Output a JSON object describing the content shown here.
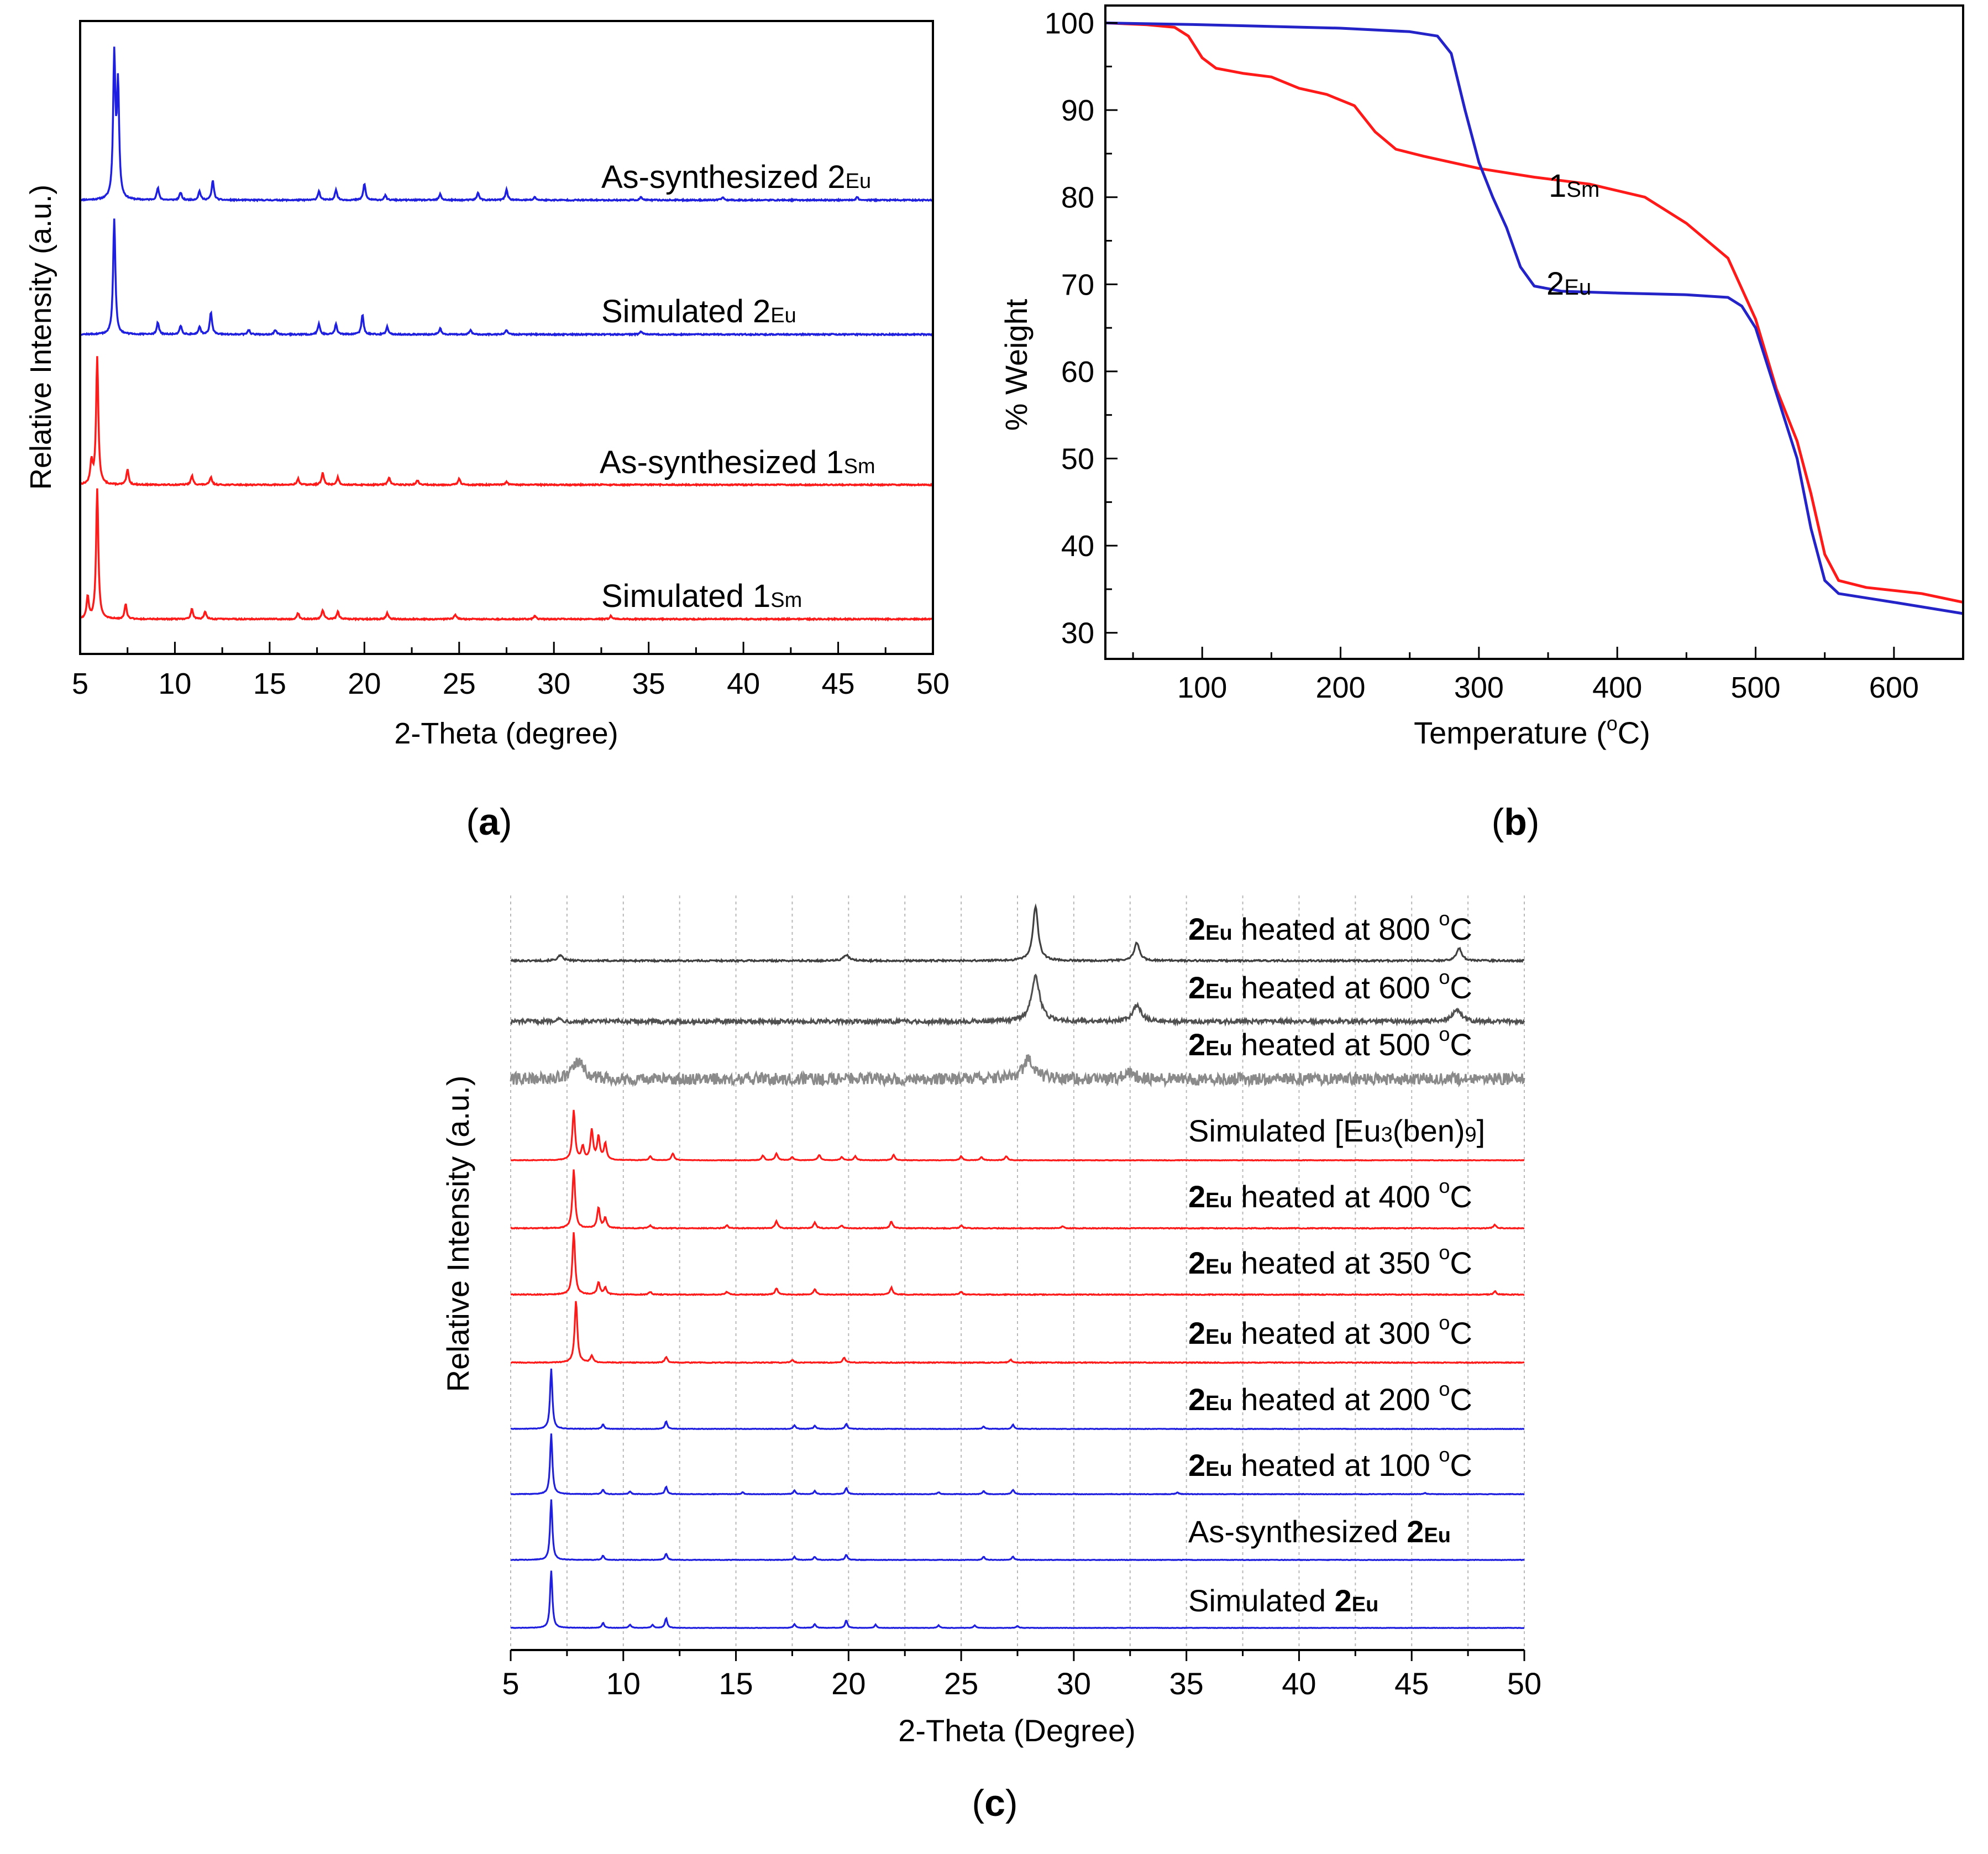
{
  "chart_data": [
    {
      "id": "a",
      "panel_label_parts": [
        "(",
        "a",
        ")"
      ],
      "type": "line",
      "xlabel": "2-Theta (degree)",
      "ylabel": "Relative Intensity (a.u.)",
      "xlim": [
        5,
        50
      ],
      "xticks": [
        5,
        10,
        15,
        20,
        25,
        30,
        35,
        40,
        45,
        50
      ],
      "series": [
        {
          "name": "As-synthesized 2Eu",
          "label_main": "As-synthesized 2",
          "label_sub": "Eu",
          "color": "#1f1fe0",
          "peaks": [
            [
              6.8,
              0.95
            ],
            [
              7.0,
              0.75
            ],
            [
              9.1,
              0.08
            ],
            [
              10.3,
              0.05
            ],
            [
              11.3,
              0.06
            ],
            [
              12.0,
              0.13
            ],
            [
              17.6,
              0.06
            ],
            [
              18.5,
              0.07
            ],
            [
              20.0,
              0.11
            ],
            [
              21.1,
              0.03
            ],
            [
              24.0,
              0.04
            ],
            [
              26.0,
              0.05
            ],
            [
              27.5,
              0.07
            ],
            [
              29.0,
              0.02
            ],
            [
              34.6,
              0.02
            ],
            [
              38.9,
              0.02
            ],
            [
              46.0,
              0.02
            ]
          ]
        },
        {
          "name": "Simulated 2Eu",
          "label_main": "Simulated 2",
          "label_sub": "Eu",
          "color": "#1f1fe0",
          "peaks": [
            [
              6.8,
              0.78
            ],
            [
              9.1,
              0.08
            ],
            [
              10.3,
              0.06
            ],
            [
              11.3,
              0.05
            ],
            [
              11.9,
              0.15
            ],
            [
              13.9,
              0.03
            ],
            [
              15.3,
              0.03
            ],
            [
              17.6,
              0.07
            ],
            [
              18.5,
              0.07
            ],
            [
              19.9,
              0.13
            ],
            [
              21.2,
              0.05
            ],
            [
              24.0,
              0.04
            ],
            [
              25.6,
              0.03
            ],
            [
              27.5,
              0.03
            ],
            [
              34.6,
              0.02
            ]
          ]
        },
        {
          "name": "As-synthesized 1Sm",
          "label_main": "As-synthesized 1",
          "label_sub": "Sm",
          "color": "#ff1a1a",
          "peaks": [
            [
              5.6,
              0.15
            ],
            [
              5.9,
              0.85
            ],
            [
              7.5,
              0.1
            ],
            [
              10.9,
              0.06
            ],
            [
              11.9,
              0.05
            ],
            [
              16.5,
              0.04
            ],
            [
              17.8,
              0.08
            ],
            [
              18.6,
              0.05
            ],
            [
              21.3,
              0.05
            ],
            [
              22.8,
              0.03
            ],
            [
              25.0,
              0.04
            ],
            [
              27.5,
              0.02
            ]
          ]
        },
        {
          "name": "Simulated 1Sm",
          "label_main": "Simulated 1",
          "label_sub": "Sm",
          "color": "#ff1a1a",
          "peaks": [
            [
              5.4,
              0.15
            ],
            [
              5.9,
              0.87
            ],
            [
              7.4,
              0.1
            ],
            [
              10.9,
              0.07
            ],
            [
              11.6,
              0.05
            ],
            [
              16.5,
              0.04
            ],
            [
              17.8,
              0.06
            ],
            [
              18.6,
              0.05
            ],
            [
              21.2,
              0.04
            ],
            [
              24.8,
              0.03
            ],
            [
              29.0,
              0.02
            ],
            [
              33.0,
              0.02
            ]
          ]
        }
      ]
    },
    {
      "id": "b",
      "panel_label_parts": [
        "(",
        "b",
        ")"
      ],
      "type": "line",
      "xlabel_main": "Temperature (",
      "xlabel_sup": "o",
      "xlabel_end": "C)",
      "ylabel": "% Weight",
      "xlim": [
        30,
        650
      ],
      "ylim": [
        27,
        102
      ],
      "xticks": [
        100,
        200,
        300,
        400,
        500,
        600
      ],
      "yticks": [
        30,
        40,
        50,
        60,
        70,
        80,
        90,
        100
      ],
      "series": [
        {
          "name": "1Sm",
          "label_main": "1",
          "label_sub": "Sm",
          "color": "#ff1a1a",
          "x": [
            30,
            60,
            80,
            90,
            100,
            110,
            130,
            150,
            170,
            190,
            210,
            225,
            240,
            260,
            300,
            340,
            380,
            420,
            450,
            480,
            500,
            515,
            530,
            540,
            550,
            560,
            580,
            620,
            650
          ],
          "y": [
            100,
            99.8,
            99.5,
            98.5,
            96,
            94.8,
            94.2,
            93.8,
            92.5,
            91.8,
            90.5,
            87.5,
            85.5,
            84.7,
            83.3,
            82.3,
            81.5,
            80,
            77,
            73,
            66,
            58,
            52,
            46,
            39,
            36,
            35.2,
            34.5,
            33.5
          ]
        },
        {
          "name": "2Eu",
          "label_main": "2",
          "label_sub": "Eu",
          "color": "#2323c8",
          "x": [
            30,
            100,
            200,
            250,
            270,
            280,
            290,
            300,
            310,
            320,
            330,
            340,
            360,
            400,
            450,
            480,
            490,
            500,
            510,
            520,
            530,
            540,
            550,
            560,
            600,
            650
          ],
          "y": [
            100,
            99.8,
            99.4,
            99.0,
            98.5,
            96.5,
            90,
            84,
            80,
            76.5,
            72,
            69.8,
            69.2,
            69.0,
            68.8,
            68.5,
            67.5,
            65,
            60,
            55,
            50,
            42,
            36,
            34.5,
            33.5,
            32.2
          ]
        }
      ]
    },
    {
      "id": "c",
      "panel_label_parts": [
        "(",
        "c",
        ")"
      ],
      "type": "line",
      "xlabel": "2-Theta (Degree)",
      "ylabel": "Relative Intensity (a.u.)",
      "xlim": [
        5,
        50
      ],
      "xticks": [
        5,
        10,
        15,
        20,
        25,
        30,
        35,
        40,
        45,
        50
      ],
      "grid": "vertical dotted",
      "series": [
        {
          "name": "2Eu heated at 800 °C",
          "bold": "2",
          "sub": "Eu",
          "text": " heated at 800 ",
          "sup": "o",
          "unit": "C",
          "color": "#404040",
          "noise": 0.012,
          "peaks": [
            [
              7.2,
              0.07
            ],
            [
              19.9,
              0.08
            ],
            [
              28.3,
              0.75
            ],
            [
              32.8,
              0.25
            ],
            [
              47.1,
              0.18
            ]
          ]
        },
        {
          "name": "2Eu heated at 600 °C",
          "bold": "2",
          "sub": "Eu",
          "text": " heated at 600 ",
          "sup": "o",
          "unit": "C",
          "color": "#505050",
          "noise": 0.025,
          "peaks": [
            [
              28.3,
              0.55
            ],
            [
              32.8,
              0.2
            ],
            [
              47.0,
              0.15
            ],
            [
              7.1,
              0.03
            ]
          ]
        },
        {
          "name": "2Eu heated at 500 °C",
          "bold": "2",
          "sub": "Eu",
          "text": " heated at 500 ",
          "sup": "o",
          "unit": "C",
          "color": "#8a8a8a",
          "noise": 0.09,
          "peaks": [
            [
              8.0,
              0.25
            ],
            [
              28.0,
              0.3
            ],
            [
              32.5,
              0.08
            ]
          ]
        },
        {
          "name": "Simulated [Eu3(ben)9]",
          "plain_text": "Simulated [Eu",
          "sub": "3",
          "plain_text2": "(ben)",
          "sub2": "9",
          "plain_end": "]",
          "color": "#ff1a1a",
          "noise": 0.004,
          "peaks": [
            [
              7.8,
              0.75
            ],
            [
              8.2,
              0.2
            ],
            [
              8.6,
              0.45
            ],
            [
              8.9,
              0.35
            ],
            [
              9.2,
              0.25
            ],
            [
              11.2,
              0.06
            ],
            [
              12.2,
              0.1
            ],
            [
              16.2,
              0.07
            ],
            [
              16.8,
              0.1
            ],
            [
              17.5,
              0.05
            ],
            [
              18.7,
              0.08
            ],
            [
              19.7,
              0.05
            ],
            [
              20.3,
              0.06
            ],
            [
              22.0,
              0.08
            ],
            [
              25.0,
              0.06
            ],
            [
              25.9,
              0.05
            ],
            [
              27.0,
              0.06
            ]
          ]
        },
        {
          "name": "2Eu heated at 400 °C",
          "bold": "2",
          "sub": "Eu",
          "text": " heated at 400 ",
          "sup": "o",
          "unit": "C",
          "color": "#ff1a1a",
          "noise": 0.006,
          "peaks": [
            [
              7.8,
              0.85
            ],
            [
              8.9,
              0.3
            ],
            [
              9.2,
              0.15
            ],
            [
              11.2,
              0.04
            ],
            [
              14.6,
              0.04
            ],
            [
              16.8,
              0.1
            ],
            [
              18.5,
              0.08
            ],
            [
              19.7,
              0.04
            ],
            [
              21.9,
              0.1
            ],
            [
              25.0,
              0.04
            ],
            [
              29.5,
              0.03
            ],
            [
              48.7,
              0.05
            ]
          ]
        },
        {
          "name": "2Eu heated at 350 °C",
          "bold": "2",
          "sub": "Eu",
          "text": " heated at 350 ",
          "sup": "o",
          "unit": "C",
          "color": "#ff1a1a",
          "noise": 0.006,
          "peaks": [
            [
              7.8,
              0.9
            ],
            [
              8.9,
              0.18
            ],
            [
              9.2,
              0.1
            ],
            [
              11.2,
              0.04
            ],
            [
              14.6,
              0.04
            ],
            [
              16.8,
              0.09
            ],
            [
              18.5,
              0.08
            ],
            [
              21.9,
              0.1
            ],
            [
              25.0,
              0.04
            ],
            [
              48.7,
              0.05
            ]
          ]
        },
        {
          "name": "2Eu heated at 300 °C",
          "bold": "2",
          "sub": "Eu",
          "text": " heated at 300 ",
          "sup": "o",
          "unit": "C",
          "color": "#ff1a1a",
          "noise": 0.006,
          "peaks": [
            [
              7.9,
              0.9
            ],
            [
              8.6,
              0.1
            ],
            [
              11.9,
              0.08
            ],
            [
              17.5,
              0.04
            ],
            [
              19.8,
              0.07
            ],
            [
              27.2,
              0.04
            ]
          ]
        },
        {
          "name": "2Eu heated at 200 °C",
          "bold": "2",
          "sub": "Eu",
          "text": " heated at 200 ",
          "sup": "o",
          "unit": "C",
          "color": "#1f1fe0",
          "noise": 0.004,
          "peaks": [
            [
              6.8,
              0.95
            ],
            [
              9.1,
              0.07
            ],
            [
              11.9,
              0.12
            ],
            [
              17.6,
              0.06
            ],
            [
              18.5,
              0.05
            ],
            [
              19.9,
              0.08
            ],
            [
              26.0,
              0.04
            ],
            [
              27.3,
              0.07
            ]
          ]
        },
        {
          "name": "2Eu heated at 100 °C",
          "bold": "2",
          "sub": "Eu",
          "text": " heated at 100 ",
          "sup": "o",
          "unit": "C",
          "color": "#1f1fe0",
          "noise": 0.004,
          "peaks": [
            [
              6.8,
              0.95
            ],
            [
              9.1,
              0.07
            ],
            [
              10.3,
              0.04
            ],
            [
              11.9,
              0.12
            ],
            [
              15.3,
              0.03
            ],
            [
              17.6,
              0.06
            ],
            [
              18.5,
              0.05
            ],
            [
              19.9,
              0.1
            ],
            [
              24.0,
              0.03
            ],
            [
              26.0,
              0.05
            ],
            [
              27.3,
              0.07
            ],
            [
              34.6,
              0.03
            ],
            [
              45.6,
              0.02
            ]
          ]
        },
        {
          "name": "As-synthesized 2Eu",
          "plain_text": "As-synthesized ",
          "bold": "2",
          "sub": "Eu",
          "color": "#1f1fe0",
          "noise": 0.004,
          "peaks": [
            [
              6.8,
              0.95
            ],
            [
              9.1,
              0.07
            ],
            [
              11.9,
              0.1
            ],
            [
              17.6,
              0.05
            ],
            [
              18.5,
              0.05
            ],
            [
              19.9,
              0.08
            ],
            [
              26.0,
              0.05
            ],
            [
              27.3,
              0.05
            ]
          ]
        },
        {
          "name": "Simulated 2Eu",
          "plain_text": "Simulated ",
          "bold": "2",
          "sub": "Eu",
          "color": "#1f1fe0",
          "noise": 0.003,
          "peaks": [
            [
              6.8,
              0.9
            ],
            [
              9.1,
              0.08
            ],
            [
              10.3,
              0.05
            ],
            [
              11.3,
              0.05
            ],
            [
              11.9,
              0.15
            ],
            [
              17.6,
              0.06
            ],
            [
              18.5,
              0.06
            ],
            [
              19.9,
              0.12
            ],
            [
              21.2,
              0.05
            ],
            [
              24.0,
              0.04
            ],
            [
              25.6,
              0.04
            ],
            [
              27.5,
              0.03
            ]
          ]
        }
      ]
    }
  ]
}
